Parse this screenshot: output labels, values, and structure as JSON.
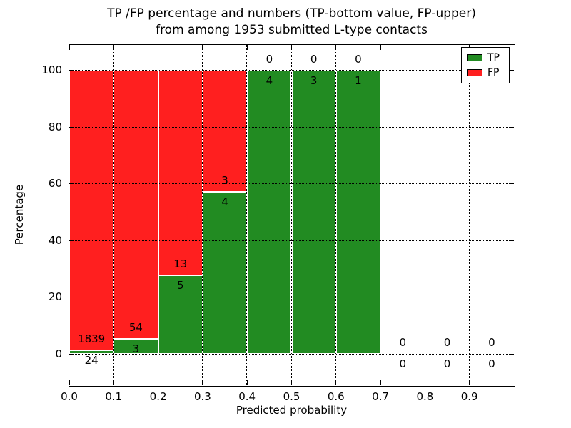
{
  "chart_data": {
    "type": "bar",
    "title_line1": "TP /FP percentage and numbers (TP-bottom value, FP-upper)",
    "title_line2": "from among 1953 submitted L-type contacts",
    "xlabel": "Predicted probability",
    "ylabel": "Percentage",
    "x_ticks": [
      "0.0",
      "0.1",
      "0.2",
      "0.3",
      "0.4",
      "0.5",
      "0.6",
      "0.7",
      "0.8",
      "0.9"
    ],
    "y_ticks": [
      "0",
      "20",
      "40",
      "60",
      "80",
      "100"
    ],
    "xlim": [
      0.0,
      1.0
    ],
    "ylim": [
      -11,
      109
    ],
    "grid": "dotted black, drawn above bars",
    "legend_position": "upper right",
    "colors": {
      "tp": "#228b22",
      "fp": "#ff1f1f",
      "bar_edge": "#ffffff",
      "text": "#000000",
      "background": "#ffffff"
    },
    "legend": [
      {
        "label": "TP",
        "color_key": "tp"
      },
      {
        "label": "FP",
        "color_key": "fp"
      }
    ],
    "stacking": "percentage stacked to 100; TP segment bottom, FP segment upper; annotations show raw counts (FP above boundary, TP below)",
    "bins": [
      {
        "range": [
          0.0,
          0.1
        ],
        "tp": 24,
        "fp": 1839
      },
      {
        "range": [
          0.1,
          0.2
        ],
        "tp": 3,
        "fp": 54
      },
      {
        "range": [
          0.2,
          0.3
        ],
        "tp": 5,
        "fp": 13
      },
      {
        "range": [
          0.3,
          0.4
        ],
        "tp": 4,
        "fp": 3
      },
      {
        "range": [
          0.4,
          0.5
        ],
        "tp": 4,
        "fp": 0
      },
      {
        "range": [
          0.5,
          0.6
        ],
        "tp": 3,
        "fp": 0
      },
      {
        "range": [
          0.6,
          0.7
        ],
        "tp": 1,
        "fp": 0
      },
      {
        "range": [
          0.7,
          0.8
        ],
        "tp": 0,
        "fp": 0
      },
      {
        "range": [
          0.8,
          0.9
        ],
        "tp": 0,
        "fp": 0
      },
      {
        "range": [
          0.9,
          1.0
        ],
        "tp": 0,
        "fp": 0
      }
    ]
  }
}
